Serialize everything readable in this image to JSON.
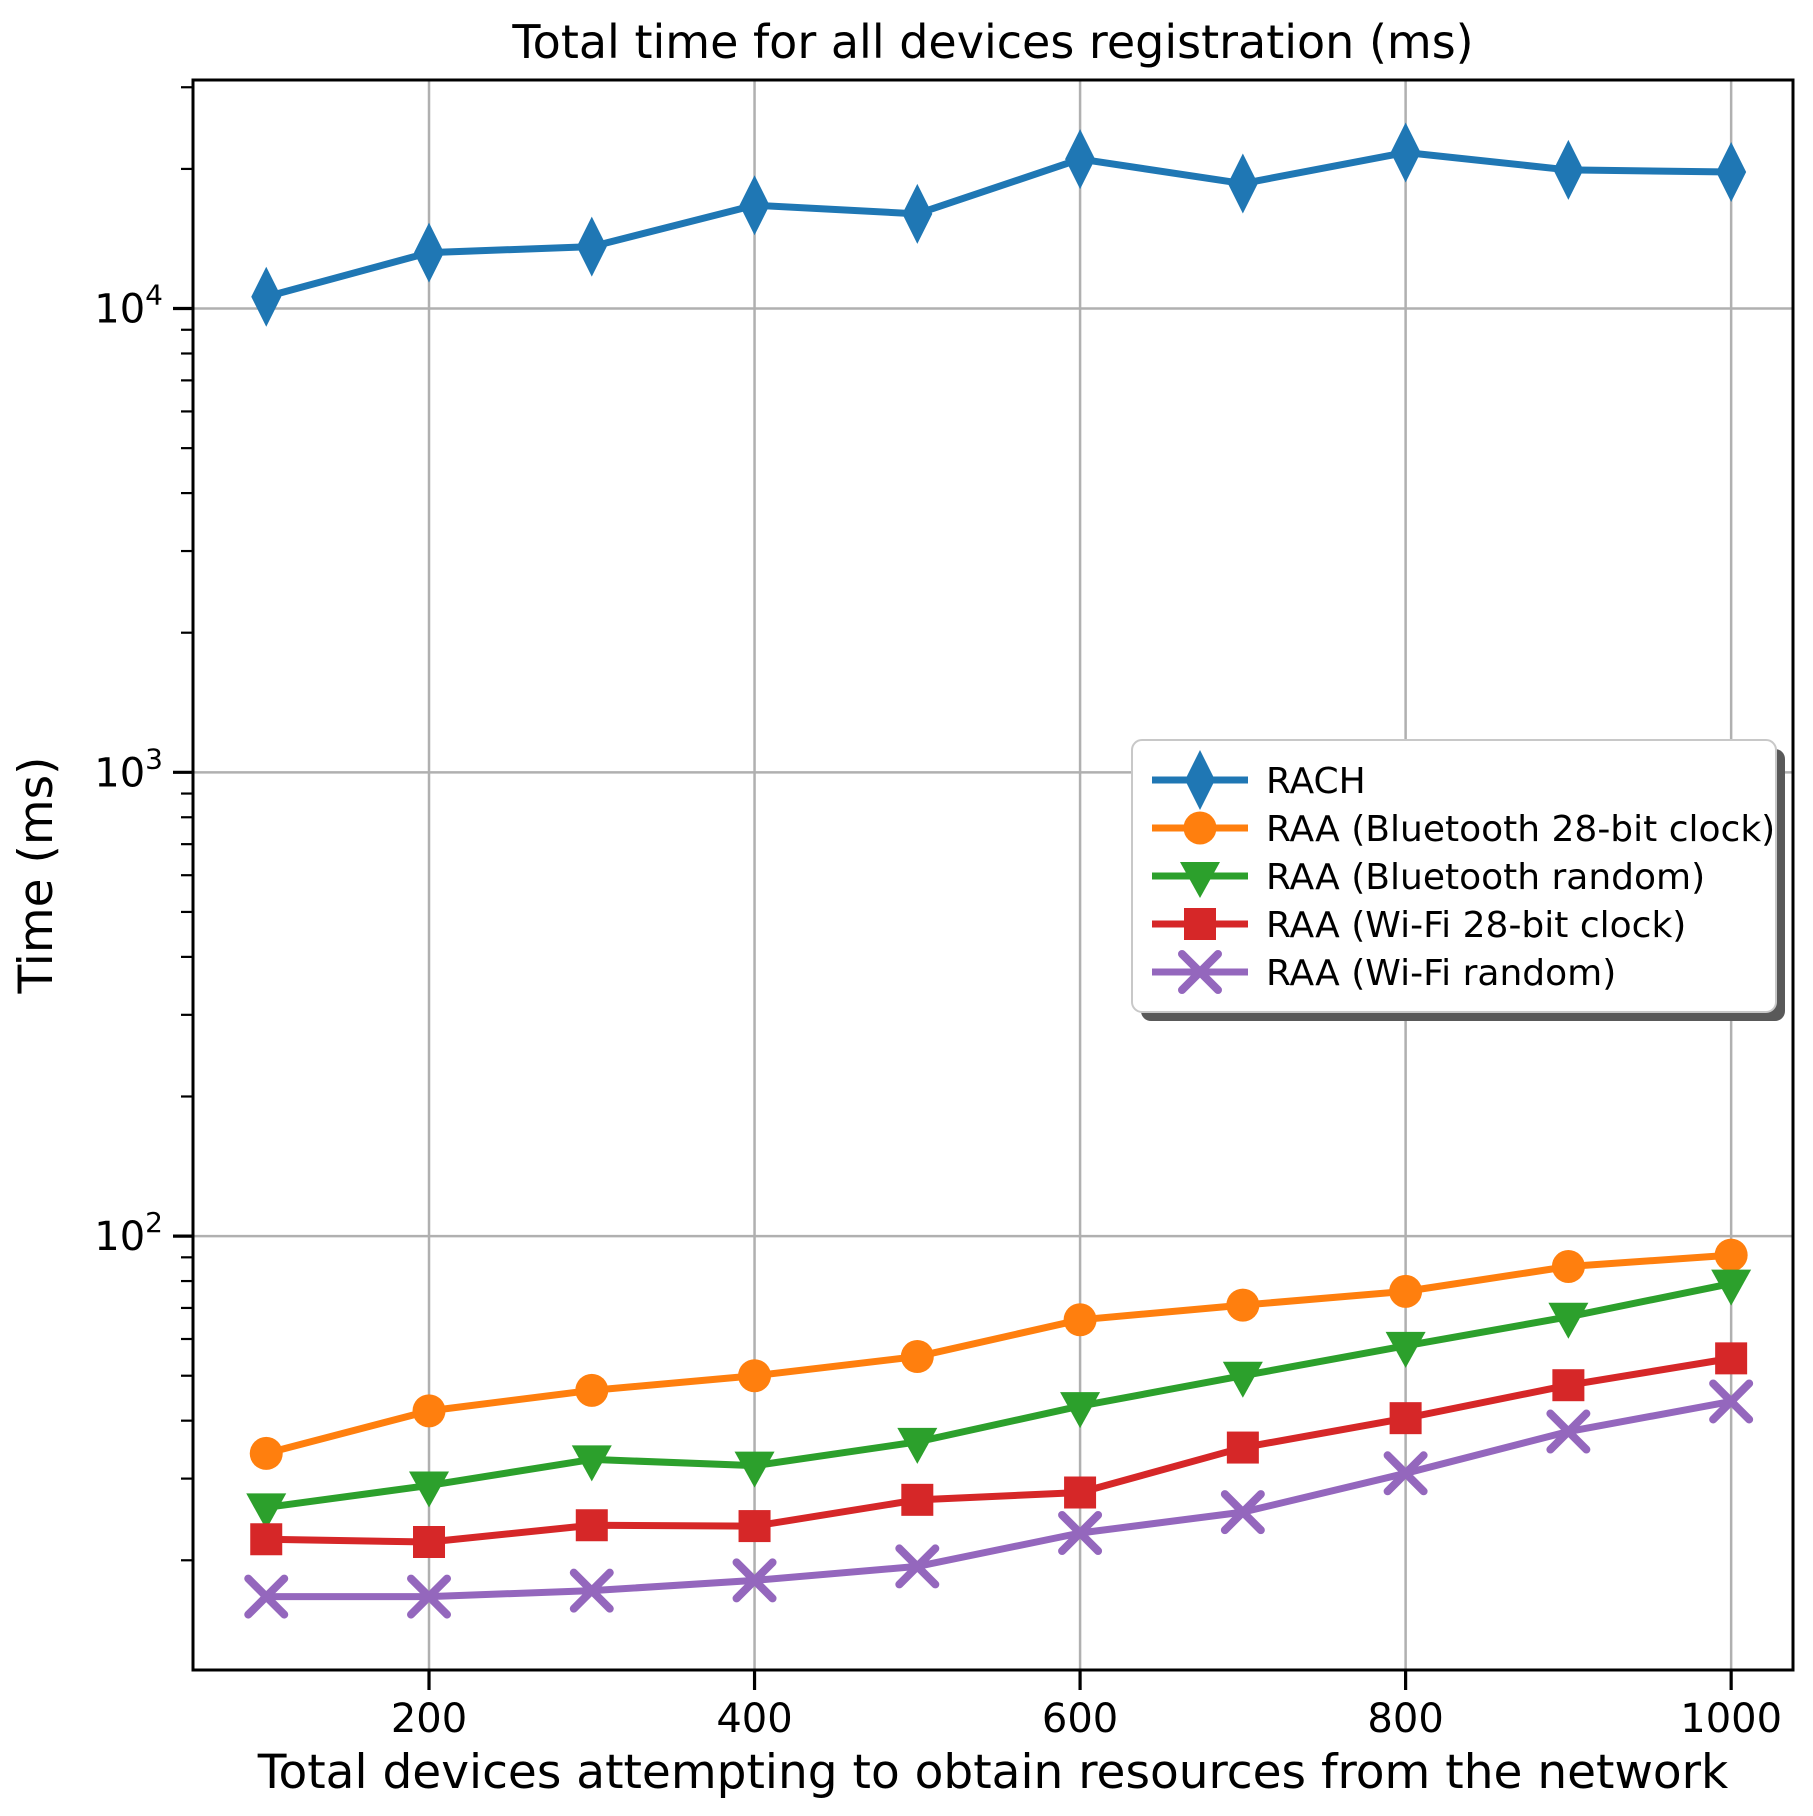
{
  "figure": {
    "title": "Total time for all devices registration (ms)",
    "xlabel": "Total devices attempting to obtain resources from the network",
    "ylabel": "Time (ms)"
  },
  "colors": {
    "grid": "#b0b0b0",
    "spine": "#000000",
    "legend_edge": "#c8c8c8",
    "legend_face": "#ffffff",
    "legend_shadow": "#595959",
    "background": "#ffffff"
  },
  "chart_data": {
    "type": "line",
    "title": "Total time for all devices registration (ms)",
    "xlabel": "Total devices attempting to obtain resources from the network",
    "ylabel": "Time (ms)",
    "x_scale": "linear",
    "y_scale": "log",
    "xlim": [
      55,
      1038
    ],
    "ylim": [
      11.6,
      31100
    ],
    "grid": true,
    "legend_position": "center right",
    "x": [
      100,
      200,
      300,
      400,
      500,
      600,
      700,
      800,
      900,
      1000
    ],
    "x_ticks": [
      {
        "value": 200,
        "label": "200"
      },
      {
        "value": 400,
        "label": "400"
      },
      {
        "value": 600,
        "label": "600"
      },
      {
        "value": 800,
        "label": "800"
      },
      {
        "value": 1000,
        "label": "1000"
      }
    ],
    "y_ticks": [
      {
        "value": 100,
        "base": "10",
        "exp": "2"
      },
      {
        "value": 1000,
        "base": "10",
        "exp": "3"
      },
      {
        "value": 10000,
        "base": "10",
        "exp": "4"
      }
    ],
    "series": [
      {
        "name": "RACH",
        "color": "#1f77b4",
        "marker": "thin-diamond",
        "values": [
          10600,
          13200,
          13600,
          16700,
          16000,
          21000,
          18600,
          21700,
          19900,
          19700
        ]
      },
      {
        "name": "RAA (Bluetooth 28-bit clock)",
        "color": "#ff7f0e",
        "marker": "circle",
        "values": [
          34,
          42,
          46.5,
          50,
          55,
          66,
          71,
          76,
          86,
          91
        ]
      },
      {
        "name": "RAA (Bluetooth random)",
        "color": "#2ca02c",
        "marker": "triangle-down",
        "values": [
          26,
          29,
          33,
          32,
          36,
          43,
          50,
          58,
          67,
          79
        ]
      },
      {
        "name": "RAA (Wi-Fi 28-bit clock)",
        "color": "#d62728",
        "marker": "square",
        "values": [
          22.2,
          21.9,
          23.8,
          23.7,
          27,
          28,
          35,
          40.5,
          47.7,
          54.5
        ]
      },
      {
        "name": "RAA (Wi-Fi random)",
        "color": "#9467bd",
        "marker": "x",
        "values": [
          16.7,
          16.7,
          17.2,
          18.1,
          19.4,
          22.9,
          25.4,
          30.8,
          37.9,
          44
        ]
      }
    ]
  }
}
